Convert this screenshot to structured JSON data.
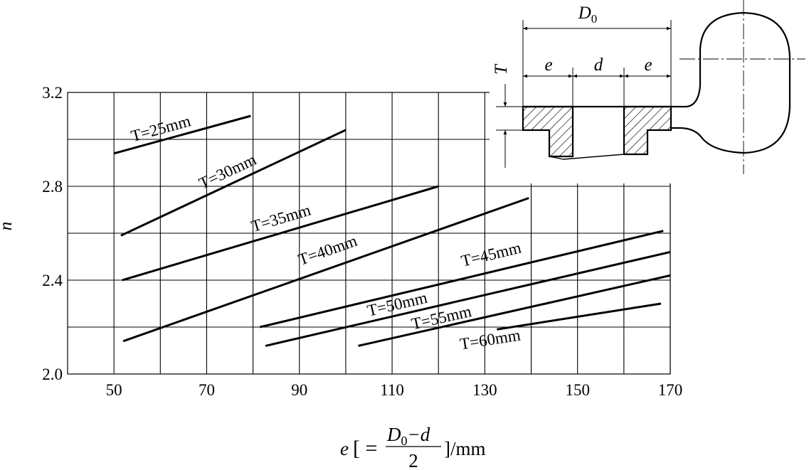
{
  "chart_data": {
    "type": "line",
    "y_label": "n",
    "x_label": {
      "prefix": "e",
      "bracket_open": "[ =",
      "numerator_main": "D",
      "numerator_sub": "0",
      "numerator_rest": "−d",
      "denominator": "2",
      "suffix": "]/mm"
    },
    "xlim": [
      40,
      170
    ],
    "ylim": [
      2.0,
      3.2
    ],
    "xticks": [
      50,
      70,
      90,
      110,
      130,
      150,
      170
    ],
    "yticks": [
      {
        "value": 2.0,
        "label": "2.0"
      },
      {
        "value": 2.4,
        "label": "2.4"
      },
      {
        "value": 2.8,
        "label": "2.8"
      },
      {
        "value": 3.2,
        "label": "3.2"
      }
    ],
    "xgrid": [
      50,
      60,
      70,
      80,
      90,
      100,
      110,
      120,
      130,
      140,
      150,
      160,
      170
    ],
    "ygrid": [
      2.2,
      2.4,
      2.6,
      2.8,
      3.0
    ],
    "grid": true,
    "series": [
      {
        "name": "T=25mm",
        "color": "#000000",
        "x": [
          50,
          79.5
        ],
        "values": [
          2.94,
          3.1
        ]
      },
      {
        "name": "T=30mm",
        "color": "#000000",
        "x": [
          51.5,
          100
        ],
        "values": [
          2.59,
          3.04
        ]
      },
      {
        "name": "T=35mm",
        "color": "#000000",
        "x": [
          51.8,
          120
        ],
        "values": [
          2.4,
          2.8
        ]
      },
      {
        "name": "T=40mm",
        "color": "#000000",
        "x": [
          52,
          139.5
        ],
        "values": [
          2.14,
          2.75
        ]
      },
      {
        "name": "T=45mm",
        "color": "#000000",
        "x": [
          81.5,
          168.5
        ],
        "values": [
          2.2,
          2.61
        ]
      },
      {
        "name": "T=50mm",
        "color": "#000000",
        "x": [
          82.7,
          170
        ],
        "values": [
          2.12,
          2.52
        ]
      },
      {
        "name": "T=55mm",
        "color": "#000000",
        "x": [
          102.7,
          170
        ],
        "values": [
          2.12,
          2.42
        ]
      },
      {
        "name": "T=60mm",
        "color": "#000000",
        "x": [
          132.6,
          168
        ],
        "values": [
          2.19,
          2.3
        ]
      }
    ]
  },
  "inset": {
    "D_main": "D",
    "D_sub": "0",
    "e_left": "e",
    "d": "d",
    "e_right": "e",
    "T": "T"
  }
}
